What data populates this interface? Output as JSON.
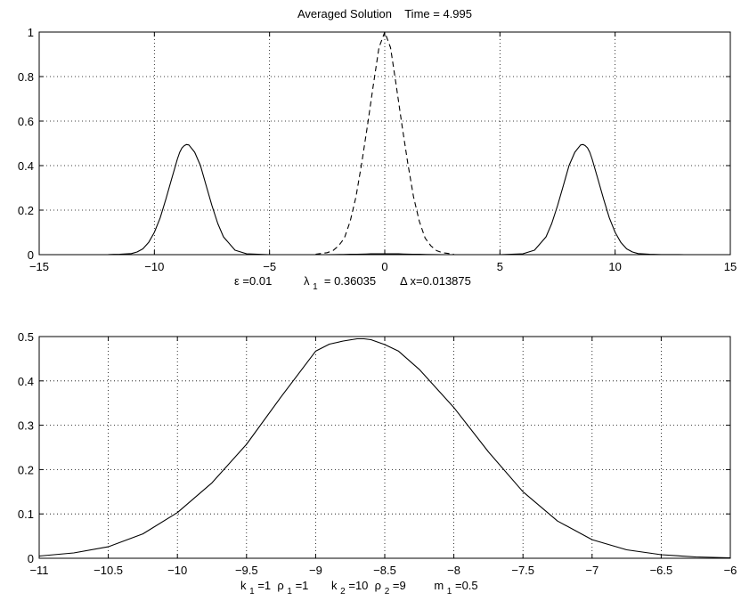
{
  "chart_data": [
    {
      "type": "line",
      "title": "Averaged Solution    Time = 4.995",
      "xlim": [
        -15,
        15
      ],
      "ylim": [
        0,
        1
      ],
      "x_ticks": [
        -15,
        -10,
        -5,
        0,
        5,
        10,
        15
      ],
      "y_ticks": [
        0,
        0.2,
        0.4,
        0.6,
        0.8,
        1
      ],
      "x_tick_labels": [
        "−15",
        "−10",
        "−5",
        "0",
        "5",
        "10",
        "15"
      ],
      "y_tick_labels": [
        "0",
        "0.2",
        "0.4",
        "0.6",
        "0.8",
        "1"
      ],
      "grid": true,
      "params_line": {
        "eps": "ε =0.01",
        "lambda_sym": "λ",
        "lambda_sub": "1",
        "lambda_val": " = 0.36035",
        "dx": "Δ x=0.013875"
      },
      "series": [
        {
          "style": "solid",
          "color": "#000000",
          "x": [
            -13,
            -12,
            -11.5,
            -11,
            -10.75,
            -10.5,
            -10.25,
            -10,
            -9.75,
            -9.5,
            -9.25,
            -9,
            -8.9,
            -8.8,
            -8.7,
            -8.6,
            -8.5,
            -8.25,
            -8,
            -7.75,
            -7.5,
            -7.25,
            -7,
            -6.5,
            -6,
            -5,
            -2.6,
            -2.2,
            -1.8,
            -1.5,
            -1.2,
            -1,
            -0.8,
            -0.6,
            -0.4,
            -0.2,
            0,
            0.2,
            0.4,
            0.6,
            0.8,
            1,
            1.2,
            1.5,
            1.8,
            2.2,
            2.6,
            5,
            6,
            6.5,
            7,
            7.25,
            7.5,
            7.75,
            8,
            8.25,
            8.5,
            8.6,
            8.7,
            8.8,
            8.9,
            9,
            9.25,
            9.5,
            9.75,
            10,
            10.25,
            10.5,
            10.75,
            11,
            11.5,
            12,
            13
          ],
          "y": [
            0,
            0.0005,
            0.002,
            0.005,
            0.012,
            0.026,
            0.055,
            0.1,
            0.165,
            0.25,
            0.34,
            0.43,
            0.46,
            0.48,
            0.49,
            0.495,
            0.493,
            0.46,
            0.4,
            0.31,
            0.22,
            0.14,
            0.08,
            0.02,
            0.004,
            0,
            0,
            0.0005,
            0.001,
            0.0015,
            0.002,
            0.0025,
            0.003,
            0.0035,
            0.004,
            0.004,
            0.004,
            0.004,
            0.004,
            0.0035,
            0.003,
            0.0025,
            0.002,
            0.0015,
            0.001,
            0.0005,
            0,
            0,
            0.004,
            0.02,
            0.08,
            0.14,
            0.22,
            0.31,
            0.4,
            0.46,
            0.493,
            0.495,
            0.49,
            0.48,
            0.46,
            0.43,
            0.34,
            0.25,
            0.165,
            0.1,
            0.055,
            0.026,
            0.012,
            0.005,
            0.002,
            0.0005,
            0
          ]
        },
        {
          "style": "dashed",
          "color": "#000000",
          "x": [
            -3,
            -2.5,
            -2.25,
            -2,
            -1.75,
            -1.5,
            -1.25,
            -1,
            -0.75,
            -0.5,
            -0.25,
            0,
            0.25,
            0.5,
            0.75,
            1,
            1.25,
            1.5,
            1.75,
            2,
            2.25,
            2.5,
            3
          ],
          "y": [
            0.002,
            0.009,
            0.018,
            0.04,
            0.075,
            0.15,
            0.26,
            0.41,
            0.58,
            0.76,
            0.93,
            1.0,
            0.93,
            0.76,
            0.58,
            0.41,
            0.26,
            0.15,
            0.075,
            0.04,
            0.018,
            0.009,
            0.002
          ]
        }
      ]
    },
    {
      "type": "line",
      "xlim": [
        -11,
        -6
      ],
      "ylim": [
        0,
        0.5
      ],
      "x_ticks": [
        -11,
        -10.5,
        -10,
        -9.5,
        -9,
        -8.5,
        -8,
        -7.5,
        -7,
        -6.5,
        -6
      ],
      "y_ticks": [
        0,
        0.1,
        0.2,
        0.3,
        0.4,
        0.5
      ],
      "x_tick_labels": [
        "−11",
        "−10.5",
        "−10",
        "−9.5",
        "−9",
        "−8.5",
        "−8",
        "−7.5",
        "−7",
        "−6.5",
        "−6"
      ],
      "y_tick_labels": [
        "0",
        "0.1",
        "0.2",
        "0.3",
        "0.4",
        "0.5"
      ],
      "grid": true,
      "params_line": {
        "k1_sym": "k",
        "k1_sub": "1",
        "k1_val": "=1 ",
        "rho1_sym": "ρ",
        "rho1_sub": "1",
        "rho1_val": "=1",
        "k2_sym": "k",
        "k2_sub": "2",
        "k2_val": "=10 ",
        "rho2_sym": "ρ",
        "rho2_sub": "2",
        "rho2_val": "=9",
        "m1_sym": "m",
        "m1_sub": "1",
        "m1_val": "=0.5"
      },
      "series": [
        {
          "style": "solid",
          "color": "#000000",
          "x": [
            -11,
            -10.75,
            -10.5,
            -10.25,
            -10,
            -9.75,
            -9.5,
            -9.25,
            -9,
            -8.9,
            -8.8,
            -8.7,
            -8.65,
            -8.6,
            -8.5,
            -8.4,
            -8.25,
            -8,
            -7.75,
            -7.5,
            -7.25,
            -7,
            -6.75,
            -6.5,
            -6.25,
            -6
          ],
          "y": [
            0.005,
            0.012,
            0.026,
            0.055,
            0.103,
            0.17,
            0.257,
            0.364,
            0.467,
            0.483,
            0.49,
            0.495,
            0.495,
            0.493,
            0.482,
            0.467,
            0.426,
            0.34,
            0.24,
            0.15,
            0.084,
            0.042,
            0.019,
            0.008,
            0.003,
            0.001
          ]
        }
      ]
    }
  ]
}
